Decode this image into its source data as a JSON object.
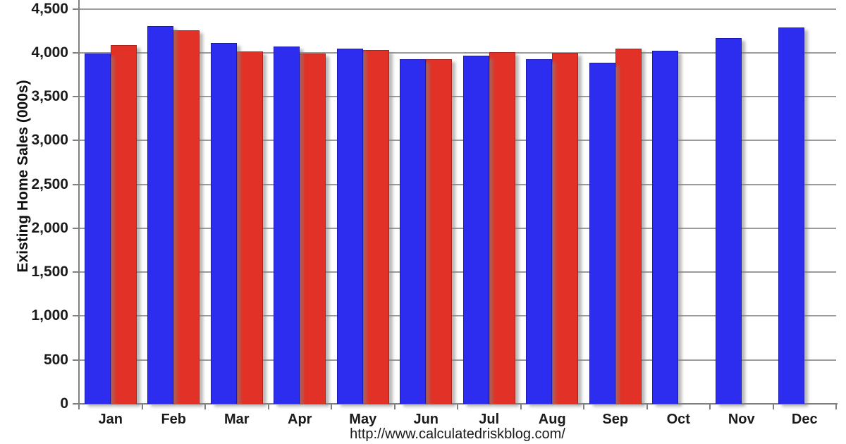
{
  "page": {
    "background_color": "#ffffff"
  },
  "caption": {
    "url_text": "http://www.calculatedriskblog.com/"
  },
  "chart_data": {
    "type": "bar",
    "title": "",
    "xlabel": "",
    "ylabel": "Existing Home Sales (000s)",
    "categories": [
      "Jan",
      "Feb",
      "Mar",
      "Apr",
      "May",
      "Jun",
      "Jul",
      "Aug",
      "Sep",
      "Oct",
      "Nov",
      "Dec"
    ],
    "series": [
      {
        "name": "blue",
        "color": "#2d2def",
        "border_color": "#1b1bb0",
        "values": [
          3990,
          4305,
          4115,
          4070,
          4050,
          3930,
          3965,
          3925,
          3890,
          4025,
          4170,
          4290
        ]
      },
      {
        "name": "red",
        "color": "#e23227",
        "border_color": "#a8241c",
        "values": [
          4085,
          4255,
          4015,
          3990,
          4030,
          3930,
          4005,
          4000,
          4050,
          null,
          null,
          null
        ]
      }
    ],
    "ylim": [
      0,
      4500
    ],
    "ytick_step": 500,
    "ytick_labels": [
      "0",
      "500",
      "1,000",
      "1,500",
      "2,000",
      "2,500",
      "3,000",
      "3,500",
      "4,000",
      "4,500"
    ],
    "grid": true,
    "legend_position": "none",
    "layout_hints": {
      "gridline_color": "#9b9b9b",
      "axis_color": "#808080",
      "bar_shadow": "excel-style outer shadow bottom-right"
    }
  }
}
